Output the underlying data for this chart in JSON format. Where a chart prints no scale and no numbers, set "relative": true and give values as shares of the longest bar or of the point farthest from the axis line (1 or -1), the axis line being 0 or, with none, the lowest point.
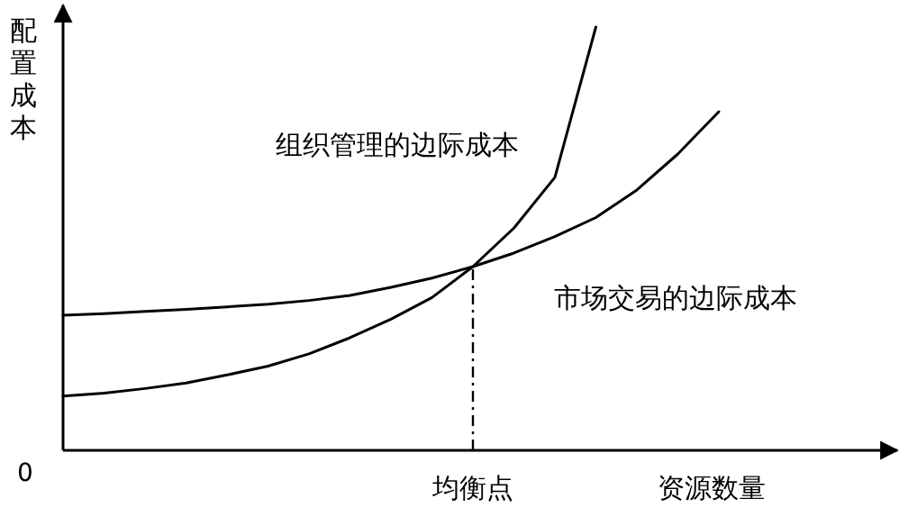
{
  "chart_data": {
    "type": "line",
    "relative": true,
    "xlabel": "资源数量",
    "ylabel": "配置成本",
    "annotations": [
      "0",
      "均衡点"
    ],
    "marker": "none",
    "line_style": "solid",
    "categories": [
      null,
      null,
      null,
      null,
      null,
      null,
      null,
      null,
      null,
      null,
      null,
      null,
      null,
      null,
      null,
      null,
      null
    ],
    "series": [
      {
        "name": "组织管理的边际成本",
        "color": "#000000",
        "values": [
          0.128,
          0.135,
          0.146,
          0.159,
          0.178,
          0.199,
          0.228,
          0.266,
          0.31,
          0.361,
          0.434,
          0.525,
          0.645,
          1,
          null,
          null,
          null
        ]
      },
      {
        "name": "市场交易的边际成本",
        "color": "#000000",
        "values": [
          0.319,
          0.323,
          0.328,
          0.333,
          0.339,
          0.345,
          0.354,
          0.366,
          0.385,
          0.407,
          0.434,
          0.466,
          0.505,
          0.55,
          0.615,
          0.7,
          0.8
        ]
      }
    ]
  }
}
